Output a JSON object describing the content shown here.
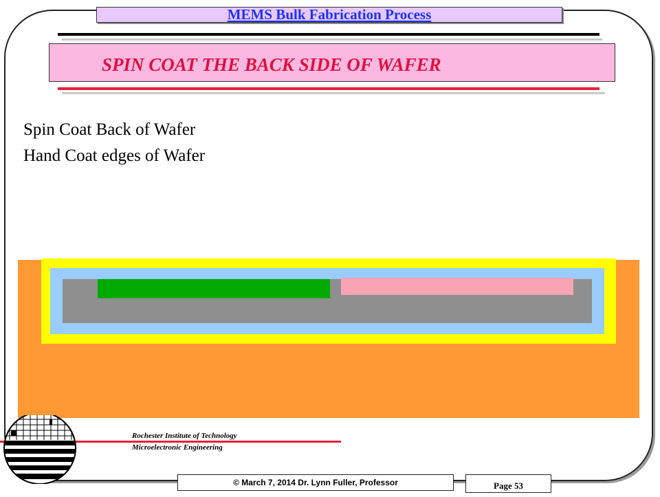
{
  "header": {
    "title": "MEMS Bulk Fabrication Process"
  },
  "slide": {
    "title": "SPIN COAT THE BACK SIDE OF WAFER",
    "body": [
      "Spin Coat Back of Wafer",
      "Hand Coat edges of Wafer"
    ]
  },
  "diagram": {
    "colors": {
      "background": "#ff9933",
      "outer_coat": "#ffff00",
      "inner_layer": "#99ccff",
      "wafer": "#8f8f8f",
      "green_region": "#00aa00",
      "pink_region": "#f9a4b4"
    }
  },
  "footer": {
    "institution": "Rochester Institute of Technology",
    "department": "Microelectronic Engineering",
    "copyright": "© March 7, 2014 Dr. Lynn Fuller, Professor",
    "page": "Page 53"
  },
  "colors": {
    "accent_red": "#e8203c",
    "title_pink": "#fbb8e0",
    "header_lavender": "#e8c8ff",
    "header_text": "#1a33ff"
  },
  "icons": {
    "logo": "rit-wafer-logo"
  }
}
